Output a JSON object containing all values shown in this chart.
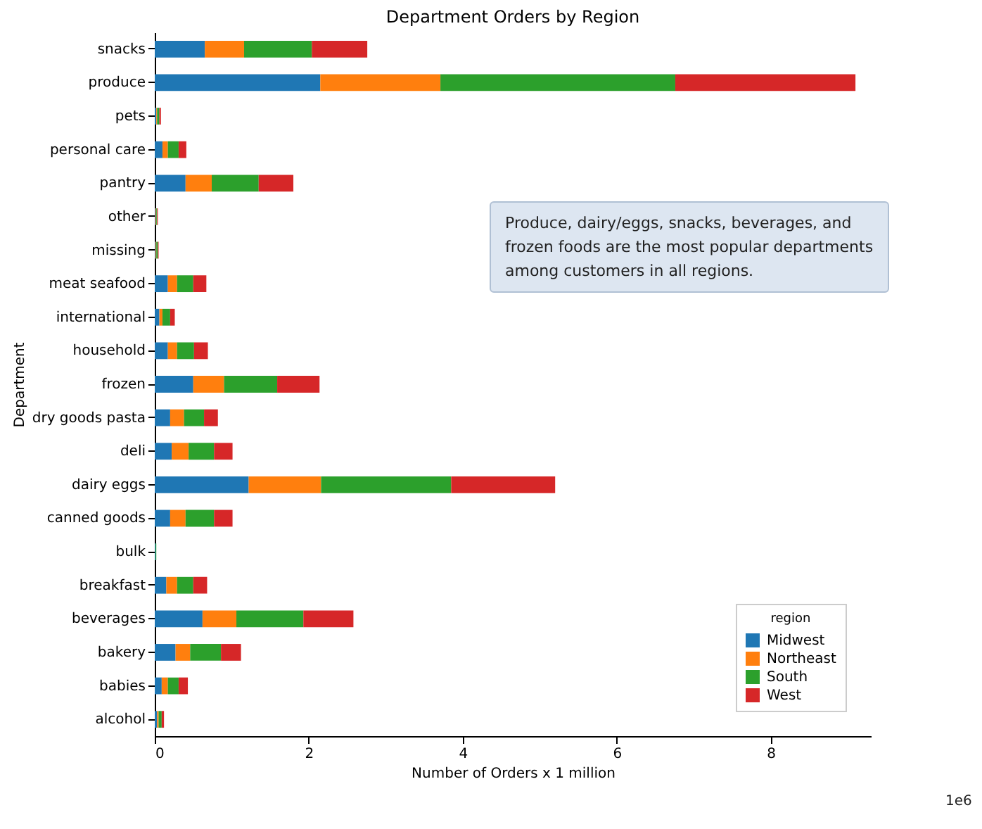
{
  "chart_data": {
    "type": "bar",
    "orientation": "horizontal",
    "stacked": true,
    "title": "Department Orders by Region",
    "xlabel": "Number of Orders x 1 million",
    "ylabel": "Department",
    "legend_title": "region",
    "legend": "bottom right",
    "grid": false,
    "categories": [
      "snacks",
      "produce",
      "pets",
      "personal care",
      "pantry",
      "other",
      "missing",
      "meat seafood",
      "international",
      "household",
      "frozen",
      "dry goods pasta",
      "deli",
      "dairy eggs",
      "canned goods",
      "bulk",
      "breakfast",
      "beverages",
      "bakery",
      "babies",
      "alcohol"
    ],
    "series": [
      {
        "name": "Midwest",
        "color": "#1f77b4",
        "values": [
          0.65,
          2.15,
          0.02,
          0.1,
          0.4,
          0.01,
          0.01,
          0.17,
          0.06,
          0.17,
          0.5,
          0.2,
          0.22,
          1.22,
          0.2,
          0.01,
          0.15,
          0.62,
          0.27,
          0.09,
          0.03
        ]
      },
      {
        "name": "Northeast",
        "color": "#ff7f0e",
        "values": [
          0.51,
          1.56,
          0.01,
          0.07,
          0.34,
          0.01,
          0.01,
          0.12,
          0.04,
          0.12,
          0.4,
          0.18,
          0.22,
          0.94,
          0.2,
          0,
          0.14,
          0.44,
          0.19,
          0.08,
          0.02
        ]
      },
      {
        "name": "South",
        "color": "#2ca02c",
        "values": [
          0.88,
          3.05,
          0.03,
          0.14,
          0.61,
          0.01,
          0.02,
          0.21,
          0.1,
          0.22,
          0.69,
          0.26,
          0.33,
          1.69,
          0.37,
          0.01,
          0.21,
          0.87,
          0.4,
          0.14,
          0.04
        ]
      },
      {
        "name": "West",
        "color": "#d62728",
        "values": [
          0.72,
          2.34,
          0.02,
          0.1,
          0.45,
          0.01,
          0.01,
          0.17,
          0.06,
          0.18,
          0.55,
          0.18,
          0.24,
          1.35,
          0.24,
          0,
          0.18,
          0.65,
          0.26,
          0.12,
          0.03
        ]
      }
    ],
    "xlim": [
      0,
      9.3
    ],
    "xticks": [
      0,
      2,
      4,
      6,
      8
    ],
    "annotations": [
      "Produce, dairy/eggs, snacks, beverages, and frozen foods are the most popular departments among customers in all regions.",
      "1e6"
    ]
  }
}
